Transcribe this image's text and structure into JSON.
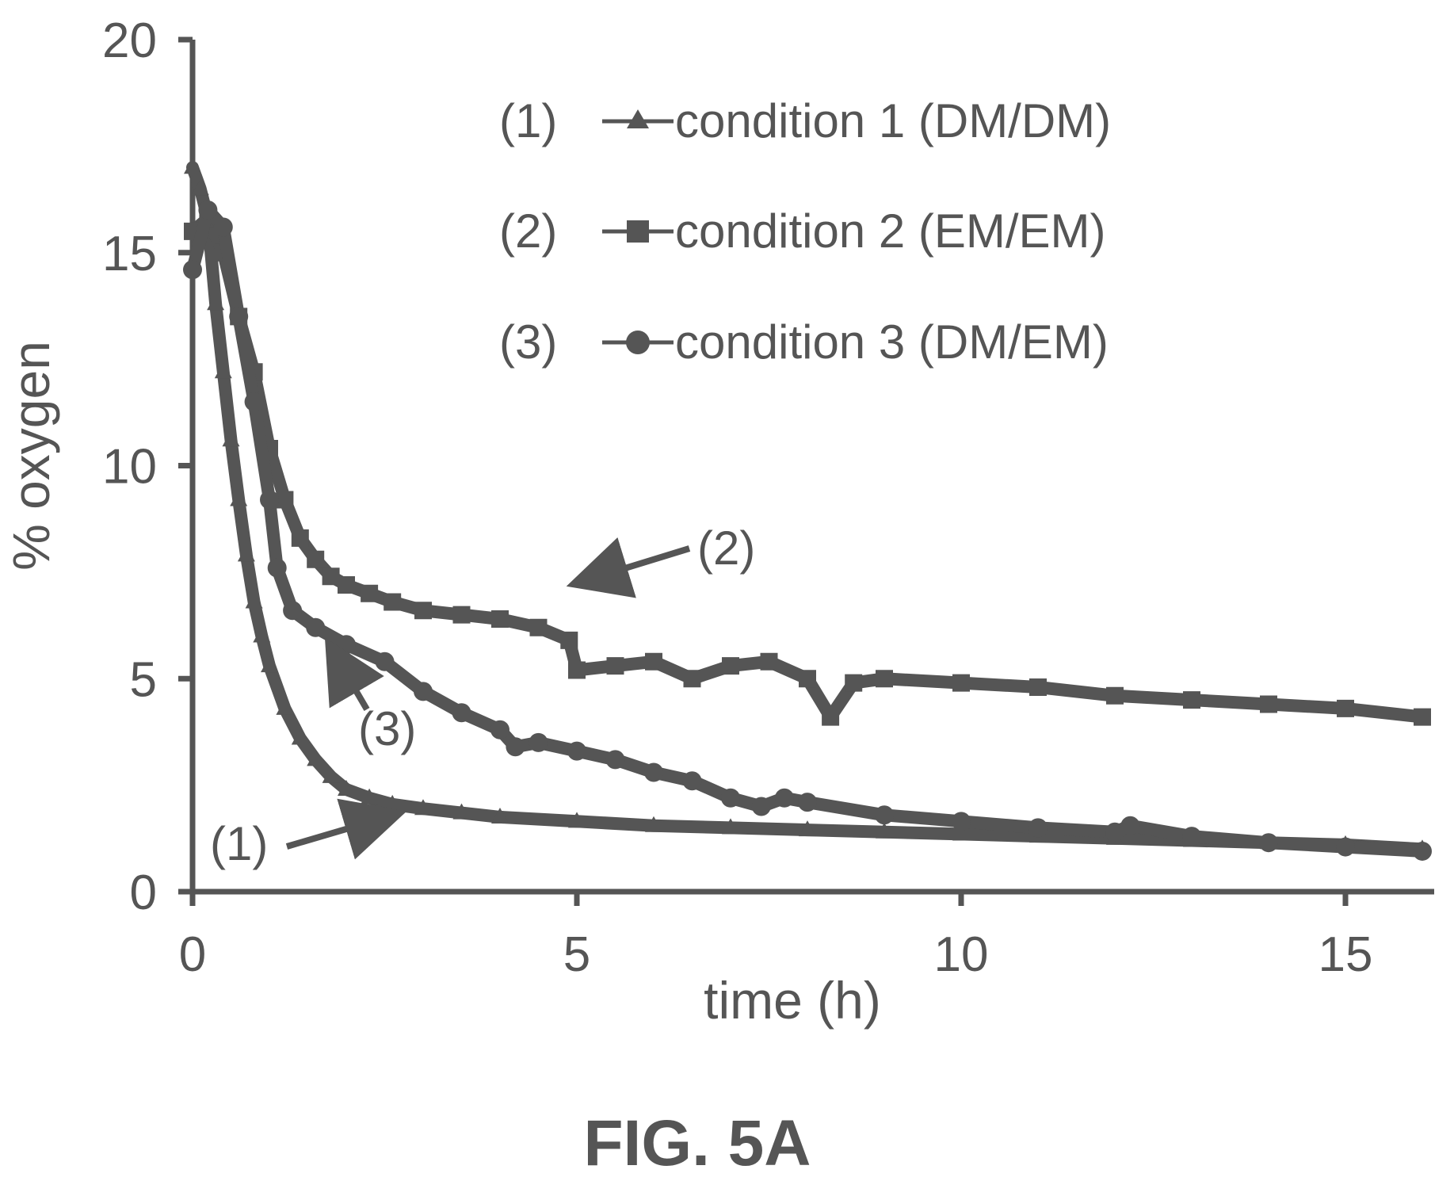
{
  "figure_label": "FIG. 5A",
  "colors": {
    "ink": "#555555",
    "background": "#ffffff"
  },
  "chart_data": {
    "type": "line",
    "title": "",
    "xlabel": "time (h)",
    "ylabel": "% oxygen",
    "xlim": [
      0,
      16
    ],
    "ylim": [
      0,
      20
    ],
    "xticks": [
      0,
      5,
      10,
      15
    ],
    "yticks": [
      0,
      5,
      10,
      15,
      20
    ],
    "grid": false,
    "legend_position": "top-right",
    "series": [
      {
        "name": "condition 1 (DM/DM)",
        "legend_id": "(1)",
        "marker": "triangle",
        "x": [
          0.0,
          0.1,
          0.2,
          0.3,
          0.4,
          0.5,
          0.6,
          0.7,
          0.8,
          0.9,
          1.0,
          1.2,
          1.4,
          1.6,
          1.8,
          2.0,
          2.3,
          2.6,
          3.0,
          3.5,
          4.0,
          5.0,
          6.0,
          7.0,
          8.0,
          9.0,
          10.0,
          11.0,
          12.0,
          13.0,
          14.0,
          15.0,
          16.0
        ],
        "y": [
          17.0,
          16.5,
          15.8,
          13.8,
          12.2,
          10.6,
          9.2,
          7.9,
          6.8,
          6.0,
          5.3,
          4.3,
          3.6,
          3.1,
          2.7,
          2.4,
          2.2,
          2.05,
          1.95,
          1.85,
          1.75,
          1.65,
          1.55,
          1.5,
          1.45,
          1.4,
          1.35,
          1.3,
          1.25,
          1.2,
          1.15,
          1.1,
          1.0
        ]
      },
      {
        "name": "condition 2 (EM/EM)",
        "legend_id": "(2)",
        "marker": "square",
        "x": [
          0.0,
          0.2,
          0.4,
          0.6,
          0.8,
          1.0,
          1.2,
          1.4,
          1.6,
          1.8,
          2.0,
          2.3,
          2.6,
          3.0,
          3.5,
          4.0,
          4.5,
          4.9,
          5.0,
          5.5,
          6.0,
          6.5,
          7.0,
          7.5,
          8.0,
          8.3,
          8.6,
          9.0,
          10.0,
          11.0,
          12.0,
          13.0,
          14.0,
          15.0,
          16.0
        ],
        "y": [
          15.5,
          15.8,
          15.0,
          13.5,
          12.2,
          10.4,
          9.2,
          8.3,
          7.8,
          7.4,
          7.2,
          7.0,
          6.8,
          6.6,
          6.5,
          6.4,
          6.2,
          5.9,
          5.2,
          5.3,
          5.4,
          5.0,
          5.3,
          5.4,
          5.0,
          4.1,
          4.9,
          5.0,
          4.9,
          4.8,
          4.6,
          4.5,
          4.4,
          4.3,
          4.1
        ]
      },
      {
        "name": "condition 3 (DM/EM)",
        "legend_id": "(3)",
        "marker": "circle",
        "x": [
          0.0,
          0.2,
          0.4,
          0.6,
          0.8,
          1.0,
          1.1,
          1.3,
          1.6,
          2.0,
          2.5,
          3.0,
          3.5,
          4.0,
          4.2,
          4.5,
          5.0,
          5.5,
          6.0,
          6.5,
          7.0,
          7.4,
          7.7,
          8.0,
          9.0,
          10.0,
          11.0,
          12.0,
          12.2,
          13.0,
          14.0,
          15.0,
          16.0
        ],
        "y": [
          14.6,
          16.0,
          15.6,
          13.5,
          11.5,
          9.2,
          7.6,
          6.6,
          6.2,
          5.8,
          5.4,
          4.7,
          4.2,
          3.8,
          3.4,
          3.5,
          3.3,
          3.1,
          2.8,
          2.6,
          2.2,
          2.0,
          2.2,
          2.1,
          1.8,
          1.65,
          1.5,
          1.4,
          1.55,
          1.3,
          1.15,
          1.05,
          0.95
        ]
      }
    ],
    "annotations": [
      {
        "text": "(1)",
        "target_series": "condition 1 (DM/DM)"
      },
      {
        "text": "(2)",
        "target_series": "condition 2 (EM/EM)"
      },
      {
        "text": "(3)",
        "target_series": "condition 3 (DM/EM)"
      }
    ]
  }
}
